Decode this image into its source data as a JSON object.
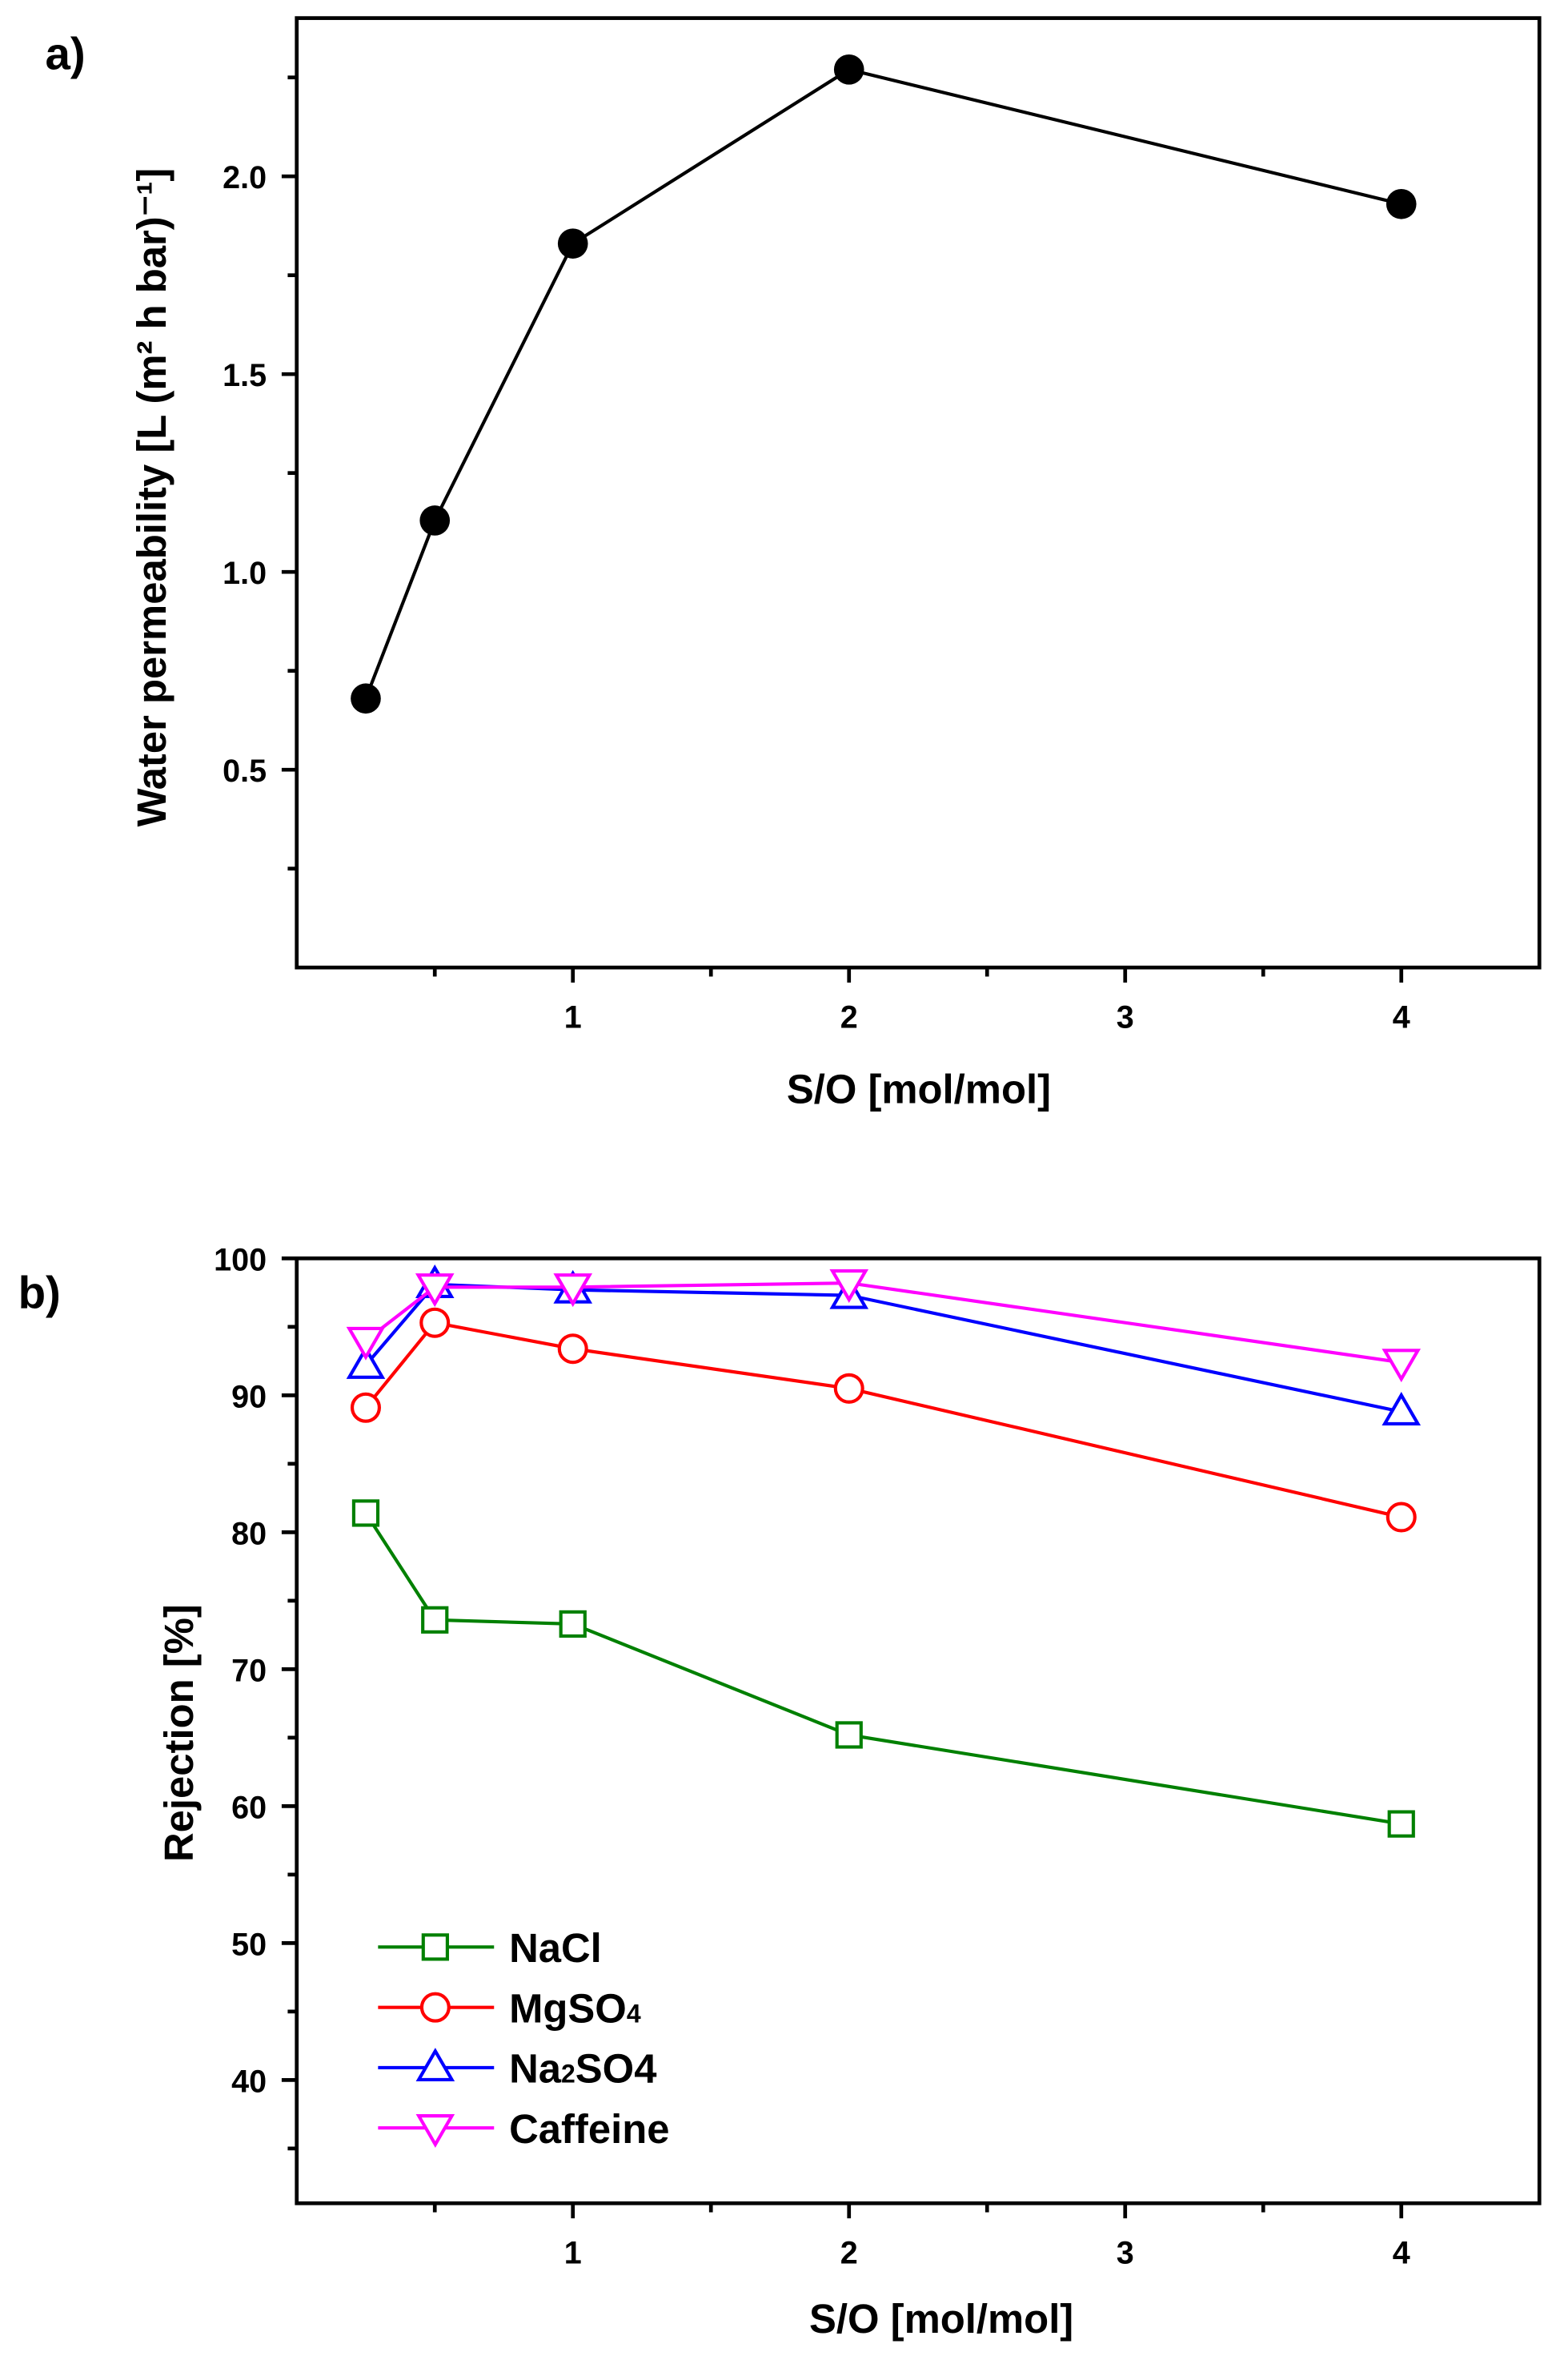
{
  "chart_data": [
    {
      "type": "line",
      "panel_label": "a)",
      "xlabel": "S/O [mol/mol]",
      "ylabel": "Water permeability [L (m² h bar)⁻¹]",
      "ylabel_parts": {
        "main": "Water permeability [L (m",
        "sup1": "2",
        "mid": " h bar)",
        "sup2": "-1",
        "end": "]"
      },
      "xlim": [
        0,
        4.5
      ],
      "ylim": [
        0,
        2.4
      ],
      "xticks": [
        1,
        2,
        3,
        4
      ],
      "xtick_labels": [
        "1",
        "2",
        "3",
        "4"
      ],
      "yticks": [
        0.5,
        1.0,
        1.5,
        2.0
      ],
      "ytick_labels": [
        "0.5",
        "1.0",
        "1.5",
        "2.0"
      ],
      "series": [
        {
          "name": "Water permeability",
          "color": "#000000",
          "marker": "filled-circle",
          "x": [
            0.25,
            0.5,
            1,
            2,
            4
          ],
          "y": [
            0.68,
            1.13,
            1.83,
            2.27,
            1.93
          ]
        }
      ]
    },
    {
      "type": "line",
      "panel_label": "b)",
      "xlabel": "S/O [mol/mol]",
      "ylabel": "Rejection [%]",
      "xlim": [
        0,
        4.5
      ],
      "ylim": [
        31,
        100
      ],
      "xticks": [
        1,
        2,
        3,
        4
      ],
      "xtick_labels": [
        "1",
        "2",
        "3",
        "4"
      ],
      "yticks": [
        40,
        50,
        60,
        70,
        80,
        90,
        100
      ],
      "ytick_labels": [
        "40",
        "50",
        "60",
        "70",
        "80",
        "90",
        "100"
      ],
      "legend_position": "bottom-left",
      "series": [
        {
          "name": "NaCl",
          "color": "#008000",
          "marker": "square",
          "x": [
            0.25,
            0.5,
            1,
            2,
            4
          ],
          "y": [
            81.4,
            73.6,
            73.3,
            65.2,
            58.7
          ]
        },
        {
          "name": "MgSO4",
          "color": "#ff0000",
          "marker": "circle",
          "x": [
            0.25,
            0.5,
            1,
            2,
            4
          ],
          "y": [
            89.1,
            95.3,
            93.4,
            90.5,
            81.1
          ]
        },
        {
          "name": "Na2SO4",
          "color": "#0000ff",
          "marker": "triangle-up",
          "x": [
            0.25,
            0.5,
            1,
            2,
            4
          ],
          "y": [
            92.2,
            98.1,
            97.7,
            97.3,
            88.8
          ]
        },
        {
          "name": "Caffeine",
          "color": "#ff00ff",
          "marker": "triangle-down",
          "x": [
            0.25,
            0.5,
            1,
            2,
            4
          ],
          "y": [
            94.0,
            97.9,
            97.9,
            98.2,
            92.4
          ]
        }
      ],
      "legend_parts": [
        {
          "a": "NaCl",
          "sub": "",
          "b": ""
        },
        {
          "a": "MgSO",
          "sub": "4",
          "b": ""
        },
        {
          "a": "Na",
          "sub": "2",
          "b": "SO4"
        },
        {
          "a": "Caffeine",
          "sub": "",
          "b": ""
        }
      ]
    }
  ]
}
